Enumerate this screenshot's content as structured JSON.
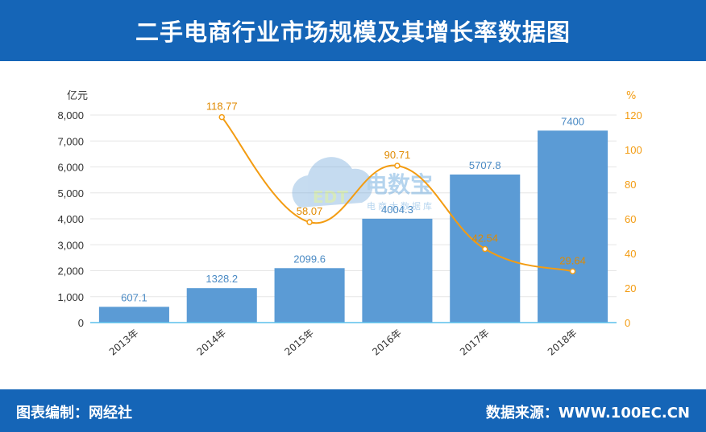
{
  "header": {
    "title": "二手电商行业市场规模及其增长率数据图"
  },
  "footer": {
    "left_label": "图表编制：网经社",
    "right_label": "数据来源：WWW.100EC.CN"
  },
  "watermark": {
    "brand": "电数宝",
    "sub": "电商大数据库",
    "logo": "EDT"
  },
  "colors": {
    "bar": "#5b9bd5",
    "line": "#f39c12",
    "axis": "#5bc0eb",
    "header": "#1565b7"
  },
  "chart_data": {
    "type": "bar+line",
    "categories": [
      "2013年",
      "2014年",
      "2015年",
      "2016年",
      "2017年",
      "2018年"
    ],
    "series": [
      {
        "type": "bar",
        "axis": "left",
        "values": [
          607.1,
          1328.2,
          2099.6,
          4004.3,
          5707.8,
          7400
        ],
        "labels": [
          "607.1",
          "1328.2",
          "2099.6",
          "4004.3",
          "5707.8",
          "7400"
        ]
      },
      {
        "type": "line",
        "axis": "right",
        "values": [
          null,
          118.77,
          58.07,
          90.71,
          42.54,
          29.64
        ],
        "labels": [
          "",
          "118.77",
          "58.07",
          "90.71",
          "42.54",
          "29.64"
        ]
      }
    ],
    "y_left": {
      "unit": "亿元",
      "min": 0,
      "max": 8000,
      "ticks": [
        "0",
        "1,000",
        "2,000",
        "3,000",
        "4,000",
        "5,000",
        "6,000",
        "7,000",
        "8,000"
      ]
    },
    "y_right": {
      "unit": "%",
      "min": 0,
      "max": 120,
      "ticks": [
        "0",
        "20",
        "40",
        "60",
        "80",
        "100",
        "120"
      ]
    },
    "grid": true
  }
}
